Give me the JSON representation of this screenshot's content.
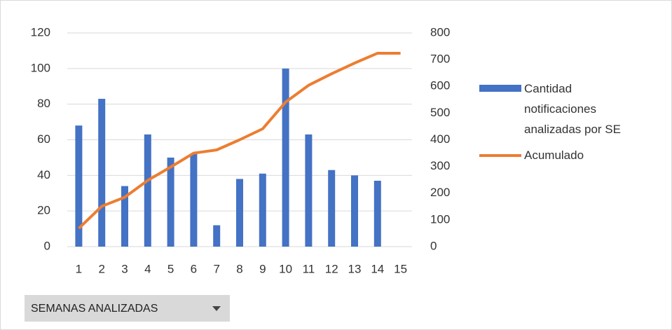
{
  "chart_data": {
    "type": "bar-line",
    "categories": [
      "1",
      "2",
      "3",
      "4",
      "5",
      "6",
      "7",
      "8",
      "9",
      "10",
      "11",
      "12",
      "13",
      "14",
      "15"
    ],
    "series": [
      {
        "name": "Cantidad notificaciones analizadas por SE",
        "color": "#4472c4",
        "type": "bar",
        "axis": "y",
        "values": [
          68,
          83,
          34,
          63,
          50,
          52,
          12,
          38,
          41,
          100,
          63,
          43,
          40,
          37,
          null
        ]
      },
      {
        "name": "Acumulado",
        "color": "#ed7d31",
        "type": "line",
        "axis": "y2",
        "values": [
          68,
          151,
          185,
          248,
          298,
          350,
          362,
          400,
          441,
          541,
          604,
          647,
          687,
          724,
          724
        ]
      }
    ],
    "ylim": [
      0,
      120
    ],
    "yticks": [
      0,
      20,
      40,
      60,
      80,
      100,
      120
    ],
    "y2lim": [
      0,
      800
    ],
    "y2ticks": [
      0,
      100,
      200,
      300,
      400,
      500,
      600,
      700,
      800
    ],
    "grid": true,
    "legend": "right",
    "field_button": "SEMANAS ANALIZADAS"
  }
}
